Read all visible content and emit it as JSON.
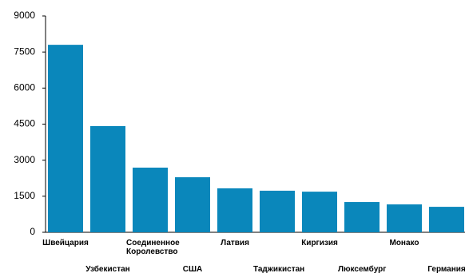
{
  "chart_data": {
    "type": "bar",
    "categories": [
      "Швейцария",
      "Узбекистан",
      "Соединенное Королевство",
      "США",
      "Латвия",
      "Таджикистан",
      "Киргизия",
      "Люксембург",
      "Монако",
      "Германия"
    ],
    "values": [
      7800,
      4420,
      2690,
      2290,
      1830,
      1730,
      1690,
      1260,
      1160,
      1060
    ],
    "color": "#0a87bb",
    "ylim": [
      0,
      9000
    ],
    "yticks": [
      0,
      1500,
      3000,
      4500,
      6000,
      7500,
      9000
    ],
    "grid": false
  }
}
